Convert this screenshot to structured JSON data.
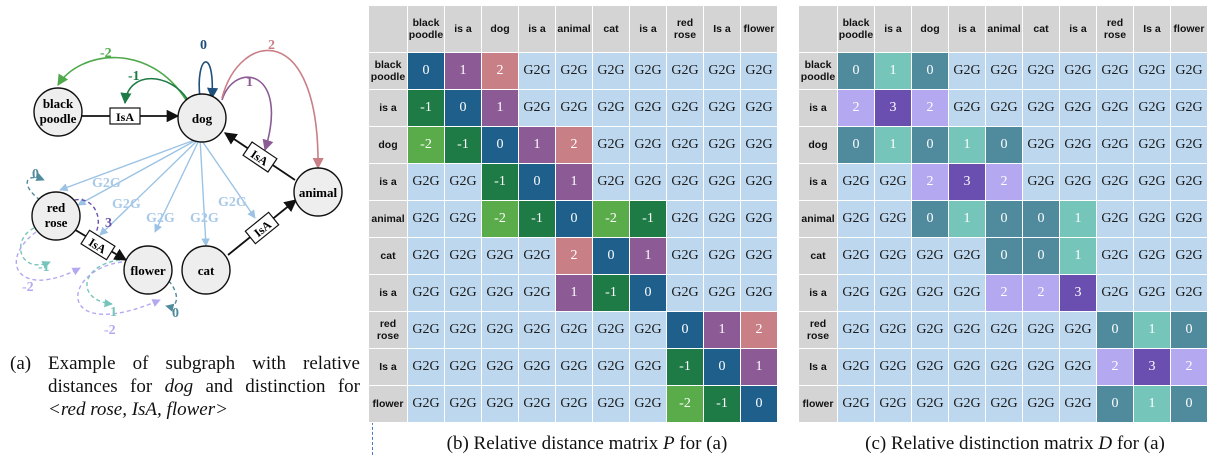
{
  "graph": {
    "nodes": {
      "black_poodle": "black poodle",
      "dog": "dog",
      "animal": "animal",
      "red_rose": "red rose",
      "flower": "flower",
      "cat": "cat"
    },
    "relation_label": "IsA",
    "top_distances": [
      "-2",
      "-1",
      "0",
      "1",
      "2"
    ],
    "g2g_label": "G2G",
    "rose_distinctions": [
      "0",
      "3",
      "-1",
      "-2",
      "1",
      "-2",
      "0"
    ]
  },
  "captions": {
    "a_label": "(a)",
    "a_text_1": "Example of subgraph with relative distances for ",
    "a_dog": "dog",
    "a_text_2": " and distinction for ",
    "a_triple": "<red rose, IsA, flower>",
    "b_text": "(b) Relative distance matrix ",
    "b_symbol": "P",
    "b_suffix": " for (a)",
    "c_text": "(c) Relative distinction matrix ",
    "c_symbol": "D",
    "c_suffix": " for (a)"
  },
  "colors": {
    "g2g": "#bdd7ee",
    "header": "#d4d4d4",
    "p": {
      "0": "#1f5f8b",
      "1": "#8c5b95",
      "2": "#c97f86",
      "-1": "#1e7b45",
      "-2": "#5aac4a"
    },
    "d": {
      "0": "#4f8a9d",
      "1": "#76c5bb",
      "2": "#b4a8f0",
      "3": "#6a4fb0"
    }
  },
  "matrix_p": {
    "headers": [
      "black poodle",
      "is a",
      "dog",
      "is a",
      "animal",
      "cat",
      "is a",
      "red rose",
      "Is a",
      "flower"
    ],
    "rows": [
      [
        "0",
        "1",
        "2",
        "G2G",
        "G2G",
        "G2G",
        "G2G",
        "G2G",
        "G2G",
        "G2G"
      ],
      [
        "-1",
        "0",
        "1",
        "G2G",
        "G2G",
        "G2G",
        "G2G",
        "G2G",
        "G2G",
        "G2G"
      ],
      [
        "-2",
        "-1",
        "0",
        "1",
        "2",
        "G2G",
        "G2G",
        "G2G",
        "G2G",
        "G2G"
      ],
      [
        "G2G",
        "G2G",
        "-1",
        "0",
        "1",
        "G2G",
        "G2G",
        "G2G",
        "G2G",
        "G2G"
      ],
      [
        "G2G",
        "G2G",
        "-2",
        "-1",
        "0",
        "-2",
        "-1",
        "G2G",
        "G2G",
        "G2G"
      ],
      [
        "G2G",
        "G2G",
        "G2G",
        "G2G",
        "2",
        "0",
        "1",
        "G2G",
        "G2G",
        "G2G"
      ],
      [
        "G2G",
        "G2G",
        "G2G",
        "G2G",
        "1",
        "-1",
        "0",
        "G2G",
        "G2G",
        "G2G"
      ],
      [
        "G2G",
        "G2G",
        "G2G",
        "G2G",
        "G2G",
        "G2G",
        "G2G",
        "0",
        "1",
        "2"
      ],
      [
        "G2G",
        "G2G",
        "G2G",
        "G2G",
        "G2G",
        "G2G",
        "G2G",
        "-1",
        "0",
        "1"
      ],
      [
        "G2G",
        "G2G",
        "G2G",
        "G2G",
        "G2G",
        "G2G",
        "G2G",
        "-2",
        "-1",
        "0"
      ]
    ]
  },
  "matrix_d": {
    "headers": [
      "black poodle",
      "is a",
      "dog",
      "is a",
      "animal",
      "cat",
      "is a",
      "red rose",
      "Is a",
      "flower"
    ],
    "rows": [
      [
        "0",
        "1",
        "0",
        "G2G",
        "G2G",
        "G2G",
        "G2G",
        "G2G",
        "G2G",
        "G2G"
      ],
      [
        "2",
        "3",
        "2",
        "G2G",
        "G2G",
        "G2G",
        "G2G",
        "G2G",
        "G2G",
        "G2G"
      ],
      [
        "0",
        "1",
        "0",
        "1",
        "0",
        "G2G",
        "G2G",
        "G2G",
        "G2G",
        "G2G"
      ],
      [
        "G2G",
        "G2G",
        "2",
        "3",
        "2",
        "G2G",
        "G2G",
        "G2G",
        "G2G",
        "G2G"
      ],
      [
        "G2G",
        "G2G",
        "0",
        "1",
        "0",
        "0",
        "1",
        "G2G",
        "G2G",
        "G2G"
      ],
      [
        "G2G",
        "G2G",
        "G2G",
        "G2G",
        "0",
        "0",
        "1",
        "G2G",
        "G2G",
        "G2G"
      ],
      [
        "G2G",
        "G2G",
        "G2G",
        "G2G",
        "2",
        "2",
        "3",
        "G2G",
        "G2G",
        "G2G"
      ],
      [
        "G2G",
        "G2G",
        "G2G",
        "G2G",
        "G2G",
        "G2G",
        "G2G",
        "0",
        "1",
        "0"
      ],
      [
        "G2G",
        "G2G",
        "G2G",
        "G2G",
        "G2G",
        "G2G",
        "G2G",
        "2",
        "3",
        "2"
      ],
      [
        "G2G",
        "G2G",
        "G2G",
        "G2G",
        "G2G",
        "G2G",
        "G2G",
        "0",
        "1",
        "0"
      ]
    ]
  }
}
